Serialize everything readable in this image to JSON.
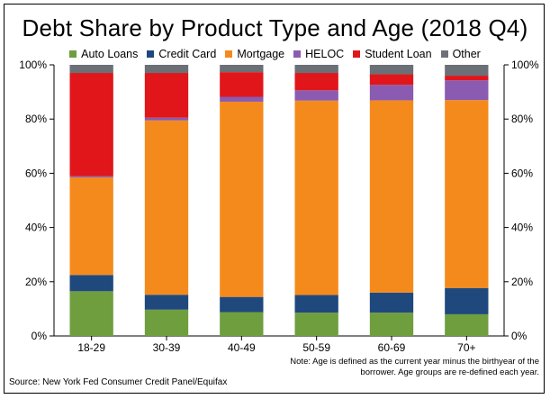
{
  "chart_data": {
    "type": "bar",
    "stacked": true,
    "title": "Debt Share by Product Type and Age (2018 Q4)",
    "xlabel": "",
    "ylabel": "",
    "ylim": [
      0,
      100
    ],
    "yticks": [
      "0%",
      "20%",
      "40%",
      "60%",
      "80%",
      "100%"
    ],
    "yticks_right": true,
    "grid": false,
    "legend_position": "top",
    "categories": [
      "18-29",
      "30-39",
      "40-49",
      "50-59",
      "60-69",
      "70+"
    ],
    "series": [
      {
        "name": "Auto Loans",
        "color": "#6f9e3f",
        "values": [
          16.5,
          9.7,
          8.8,
          8.6,
          8.6,
          8.0
        ]
      },
      {
        "name": "Credit Card",
        "color": "#1f497d",
        "values": [
          6.0,
          5.5,
          5.6,
          6.5,
          7.4,
          9.7
        ]
      },
      {
        "name": "Mortgage",
        "color": "#f58a1c",
        "values": [
          36.0,
          64.3,
          72.0,
          71.7,
          70.9,
          69.3
        ]
      },
      {
        "name": "HELOC",
        "color": "#8a5bb0",
        "values": [
          0.5,
          1.0,
          1.8,
          3.8,
          5.7,
          7.3
        ]
      },
      {
        "name": "Student Loan",
        "color": "#e0161b",
        "values": [
          38.0,
          16.5,
          9.1,
          6.4,
          3.9,
          1.7
        ]
      },
      {
        "name": "Other",
        "color": "#6b6f76",
        "values": [
          3.0,
          3.0,
          2.7,
          3.0,
          3.5,
          4.0
        ]
      }
    ]
  },
  "note": {
    "line1": "Note: Age is defined as the current year minus the birthyear of the",
    "line2": "borrower. Age groups are re-defined each year."
  },
  "source": "Source: New York Fed Consumer Credit Panel/Equifax"
}
